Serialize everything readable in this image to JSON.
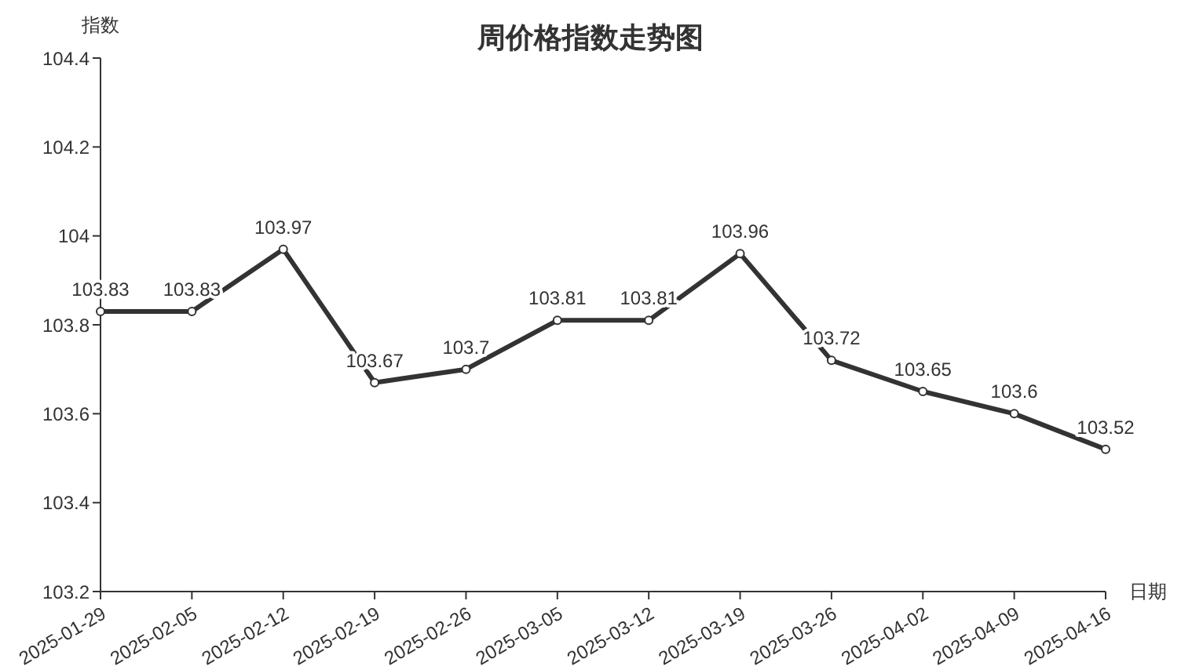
{
  "chart_data": {
    "type": "line",
    "title": "周价格指数走势图",
    "xlabel": "日期",
    "ylabel": "指数",
    "categories": [
      "2025-01-29",
      "2025-02-05",
      "2025-02-12",
      "2025-02-19",
      "2025-02-26",
      "2025-03-05",
      "2025-03-12",
      "2025-03-19",
      "2025-03-26",
      "2025-04-02",
      "2025-04-09",
      "2025-04-16"
    ],
    "series": [
      {
        "color": "#333333",
        "values": [
          103.83,
          103.83,
          103.97,
          103.67,
          103.7,
          103.81,
          103.81,
          103.96,
          103.72,
          103.65,
          103.6,
          103.52
        ]
      }
    ],
    "ylim": [
      103.2,
      104.4
    ],
    "yticks": [
      103.2,
      103.4,
      103.6,
      103.8,
      104,
      104.2,
      104.4
    ],
    "data_labels": true,
    "marker": "circle",
    "line_style": "solid"
  }
}
